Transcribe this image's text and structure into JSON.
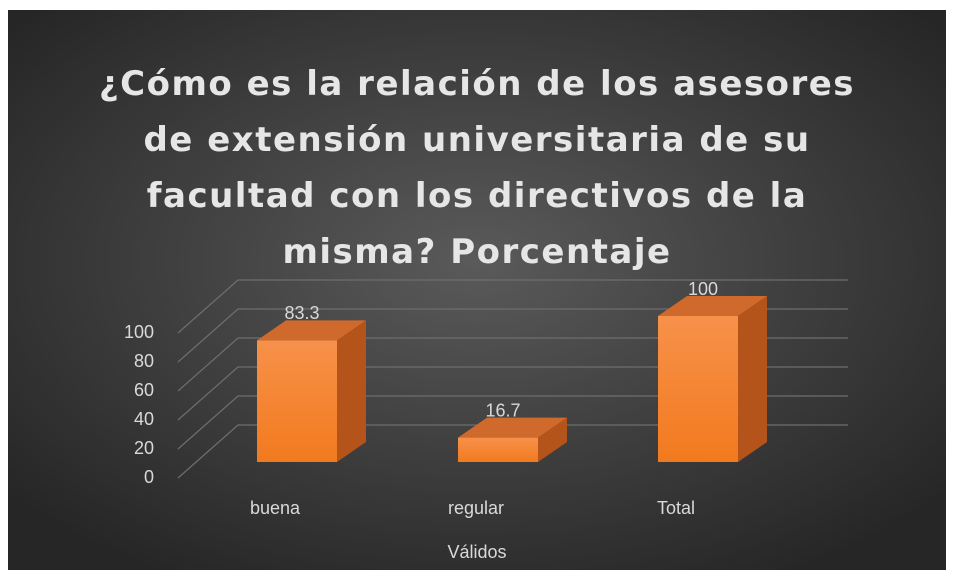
{
  "chart_data": {
    "type": "bar3d",
    "title": "¿Cómo es la relación de los asesores de extensión universitaria de su facultad con los directivos de la misma? Porcentaje",
    "categories": [
      "buena",
      "regular",
      "Total"
    ],
    "values": [
      83.3,
      16.7,
      100
    ],
    "color": "#f27f26",
    "xlabel": "Válidos",
    "ylim": [
      0,
      100
    ],
    "yticks": [
      0,
      20,
      40,
      60,
      80,
      100
    ],
    "grid": true
  }
}
